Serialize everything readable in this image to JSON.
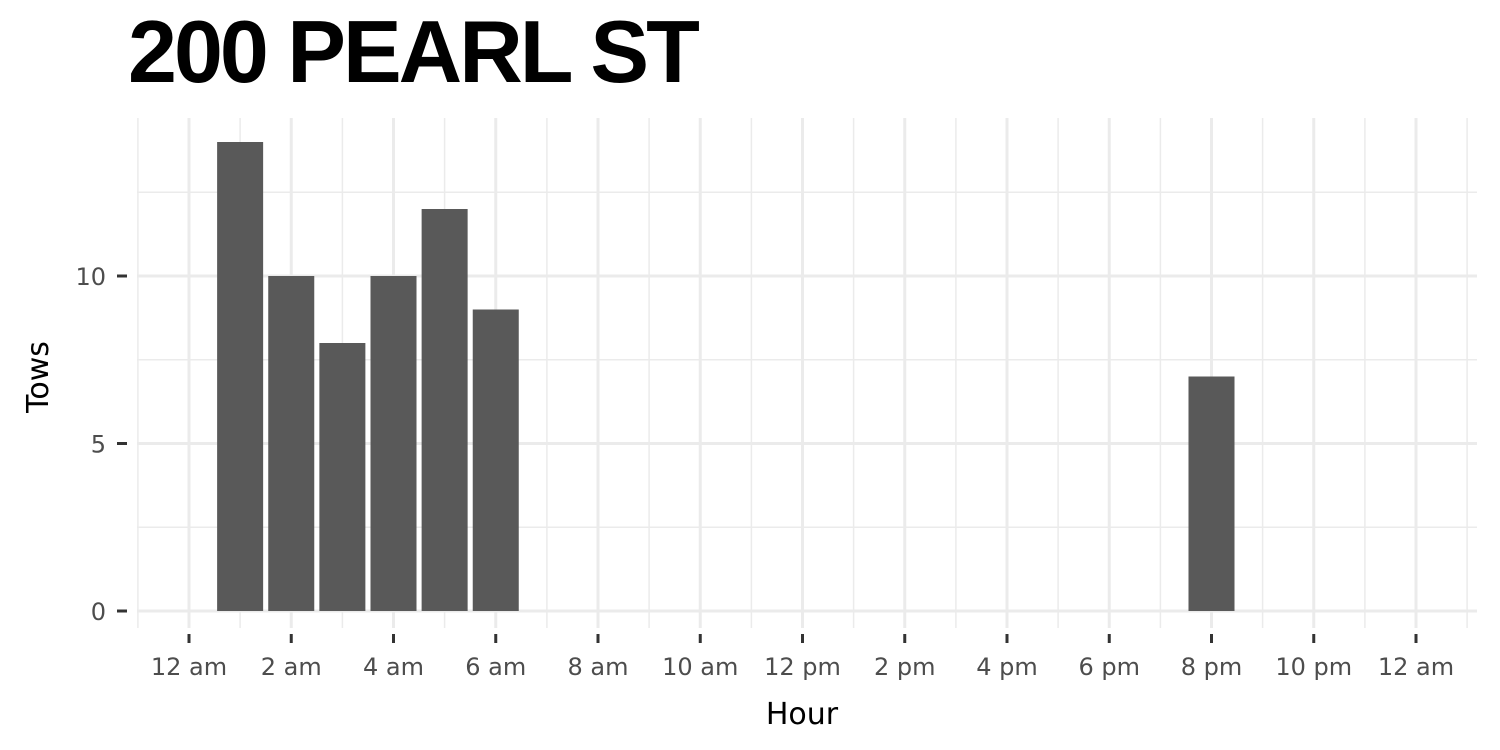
{
  "chart_data": {
    "type": "bar",
    "title": "200 PEARL ST",
    "xlabel": "Hour",
    "ylabel": "Tows",
    "x_tick_labels": [
      "12 am",
      "2 am",
      "4 am",
      "6 am",
      "8 am",
      "10 am",
      "12 pm",
      "2 pm",
      "4 pm",
      "6 pm",
      "8 pm",
      "10 pm",
      "12 am"
    ],
    "y_tick_labels": [
      "0",
      "5",
      "10"
    ],
    "ylim": [
      0,
      14.3
    ],
    "xlim": [
      0,
      24
    ],
    "bar_x": [
      1,
      2,
      3,
      4,
      5,
      6,
      20
    ],
    "values": [
      14,
      10,
      8,
      10,
      12,
      9,
      7
    ],
    "bar_color": "#595959",
    "grid": true,
    "grid_color": "#ebebeb"
  }
}
